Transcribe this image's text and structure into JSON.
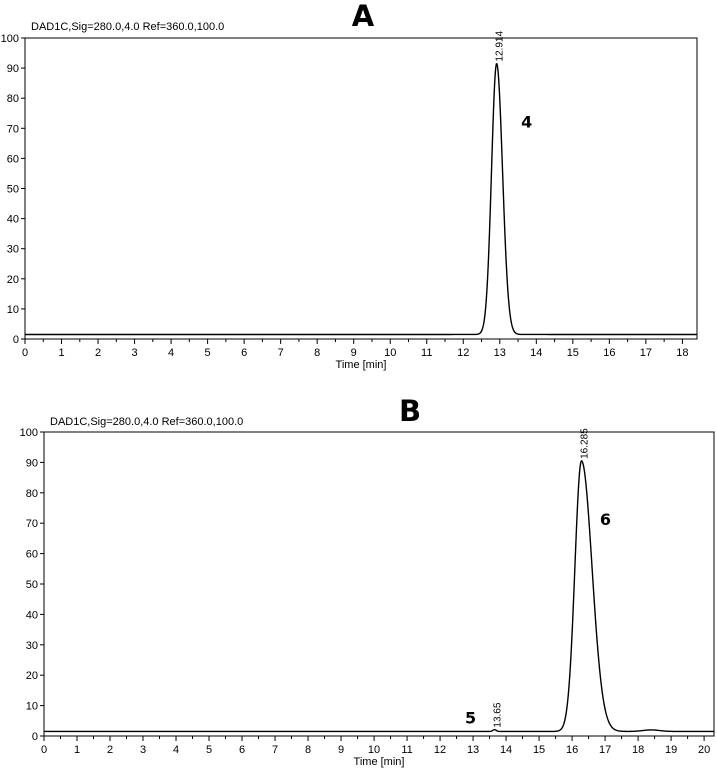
{
  "chart_data": [
    {
      "type": "line",
      "panel_label": "A",
      "header": "DAD1C,Sig=280.0,4.0  Ref=360.0,100.0",
      "xlabel": "Time [min]",
      "ylabel": "",
      "xlim": [
        0,
        18.4
      ],
      "ylim": [
        0,
        100
      ],
      "xticks": [
        0,
        1,
        2,
        3,
        4,
        5,
        6,
        7,
        8,
        9,
        10,
        11,
        12,
        13,
        14,
        15,
        16,
        17,
        18
      ],
      "yticks": [
        0,
        10,
        20,
        30,
        40,
        50,
        60,
        70,
        80,
        90,
        100
      ],
      "baseline": 1.5,
      "grid": false,
      "peaks": [
        {
          "rt": 12.914,
          "height": 90,
          "sigma": 0.14,
          "tail": 1.15,
          "rt_label": "12.914",
          "compound": "4"
        }
      ]
    },
    {
      "type": "line",
      "panel_label": "B",
      "header": "DAD1C,Sig=280.0,4.0  Ref=360.0,100.0",
      "xlabel": "Time [min]",
      "ylabel": "",
      "xlim": [
        0,
        20.3
      ],
      "ylim": [
        0,
        100
      ],
      "xticks": [
        0,
        1,
        2,
        3,
        4,
        5,
        6,
        7,
        8,
        9,
        10,
        11,
        12,
        13,
        14,
        15,
        16,
        17,
        18,
        19,
        20
      ],
      "yticks": [
        0,
        10,
        20,
        30,
        40,
        50,
        60,
        70,
        80,
        90,
        100
      ],
      "baseline": 1.5,
      "grid": false,
      "peaks": [
        {
          "rt": 13.65,
          "height": 0.6,
          "sigma": 0.05,
          "tail": 1.0,
          "rt_label": "13.65",
          "compound": "5"
        },
        {
          "rt": 16.285,
          "height": 89,
          "sigma": 0.2,
          "tail": 1.6,
          "rt_label": "16.285",
          "compound": "6"
        },
        {
          "rt": 18.4,
          "height": 0.5,
          "sigma": 0.25,
          "tail": 1.0,
          "rt_label": "",
          "compound": ""
        }
      ]
    }
  ]
}
